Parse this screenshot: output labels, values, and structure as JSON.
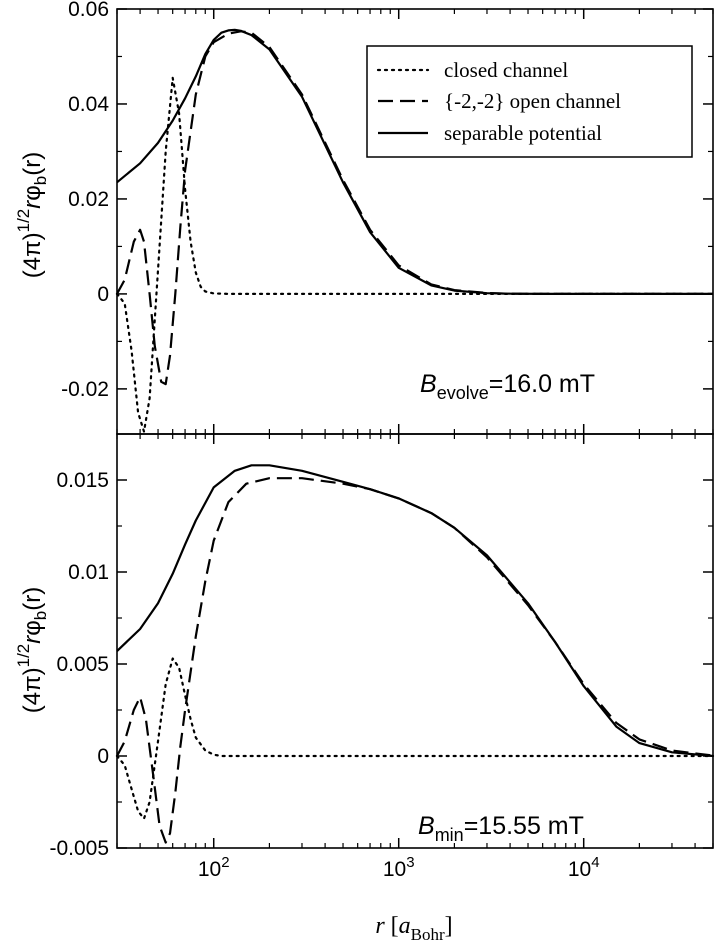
{
  "chart_data": [
    {
      "type": "line",
      "panel": "top",
      "x_scale": "log",
      "xlim": [
        30,
        50000
      ],
      "ylim": [
        -0.0295,
        0.06
      ],
      "yticks": [
        -0.02,
        0,
        0.02,
        0.04,
        0.06
      ],
      "ytick_labels": [
        "-0.02",
        "0",
        "0.02",
        "0.04",
        "0.06"
      ],
      "ylabel": {
        "prefix": "(4π)",
        "sup": "1/2",
        "r": "r",
        "phi": "φ",
        "sub": "b",
        "arg": "(r)"
      },
      "annotation": {
        "main": "B",
        "sub": "evolve",
        "rest": "=16.0 mT"
      },
      "legend": {
        "position": "top-right",
        "entries": [
          "closed channel",
          "{-2,-2} open channel",
          "separable potential"
        ]
      },
      "series": [
        {
          "name": "closed channel",
          "style": "dotted",
          "x": [
            30,
            33,
            36,
            39,
            42,
            45,
            50,
            55,
            60,
            65,
            70,
            75,
            80,
            85,
            90,
            100,
            120,
            150,
            200,
            500,
            50000
          ],
          "y": [
            0,
            -0.002,
            -0.012,
            -0.025,
            -0.029,
            -0.022,
            0.005,
            0.03,
            0.0455,
            0.038,
            0.022,
            0.011,
            0.0045,
            0.0015,
            0.0005,
            0.0001,
            0,
            0,
            0,
            0,
            0
          ]
        },
        {
          "name": "{-2,-2} open channel",
          "style": "dashed",
          "x": [
            30,
            33,
            37,
            40,
            42,
            45,
            48,
            52,
            55,
            58,
            62,
            66,
            70,
            80,
            90,
            100,
            120,
            140,
            160,
            200,
            300,
            500,
            700,
            1000,
            1500,
            2000,
            3000,
            4000,
            6000,
            10000,
            50000
          ],
          "y": [
            0,
            0.003,
            0.011,
            0.0135,
            0.011,
            0.0,
            -0.011,
            -0.0185,
            -0.019,
            -0.013,
            0.0,
            0.014,
            0.026,
            0.042,
            0.05,
            0.053,
            0.0548,
            0.0553,
            0.055,
            0.052,
            0.042,
            0.024,
            0.0135,
            0.006,
            0.002,
            0.0008,
            0.0002,
            5e-05,
            0,
            0,
            0
          ]
        },
        {
          "name": "separable potential",
          "style": "solid",
          "x": [
            30,
            40,
            50,
            60,
            70,
            80,
            90,
            100,
            110,
            120,
            130,
            140,
            160,
            200,
            300,
            500,
            700,
            1000,
            1500,
            2000,
            3000,
            4000,
            6000,
            10000,
            50000
          ],
          "y": [
            0.0235,
            0.0275,
            0.0318,
            0.0365,
            0.0412,
            0.0458,
            0.0505,
            0.0535,
            0.055,
            0.0555,
            0.0556,
            0.0554,
            0.0545,
            0.0515,
            0.0415,
            0.0235,
            0.013,
            0.0055,
            0.0018,
            0.0007,
            0.00015,
            5e-05,
            0,
            0,
            0
          ]
        }
      ]
    },
    {
      "type": "line",
      "panel": "bottom",
      "x_scale": "log",
      "xlim": [
        30,
        50000
      ],
      "ylim": [
        -0.005,
        0.0175
      ],
      "yticks": [
        -0.005,
        0,
        0.005,
        0.01,
        0.015
      ],
      "ytick_labels": [
        "-0.005",
        "0",
        "0.005",
        "0.01",
        "0.015"
      ],
      "ylabel": {
        "prefix": "(4π)",
        "sup": "1/2",
        "r": "r",
        "phi": "φ",
        "sub": "b",
        "arg": "(r)"
      },
      "annotation": {
        "main": "B",
        "sub": "min",
        "rest": "=15.55 mT"
      },
      "xticks": [
        100,
        1000,
        10000
      ],
      "xtick_labels": [
        {
          "base": "10",
          "exp": "2"
        },
        {
          "base": "10",
          "exp": "3"
        },
        {
          "base": "10",
          "exp": "4"
        }
      ],
      "xlabel": {
        "r": "r",
        "open": " [",
        "a": "a",
        "sub": "Bohr",
        "close": "]"
      },
      "series": [
        {
          "name": "closed channel",
          "style": "dotted",
          "x": [
            30,
            33,
            36,
            39,
            42,
            45,
            50,
            55,
            60,
            65,
            70,
            75,
            80,
            90,
            100,
            110,
            130,
            200,
            500,
            50000
          ],
          "y": [
            0,
            -0.0005,
            -0.0018,
            -0.003,
            -0.0034,
            -0.0025,
            0.0008,
            0.0039,
            0.0053,
            0.0048,
            0.0033,
            0.002,
            0.001,
            0.0003,
            7e-05,
            0,
            0,
            0,
            0,
            0
          ]
        },
        {
          "name": "{-2,-2} open channel",
          "style": "dashed",
          "x": [
            30,
            33,
            37,
            40,
            43,
            47,
            51,
            55,
            58,
            62,
            66,
            70,
            80,
            90,
            100,
            120,
            150,
            200,
            300,
            500,
            700,
            1000,
            1500,
            2000,
            3000,
            5000,
            7000,
            10000,
            15000,
            20000,
            30000,
            50000
          ],
          "y": [
            0,
            0.0008,
            0.0025,
            0.0032,
            0.002,
            -0.001,
            -0.0038,
            -0.0047,
            -0.0042,
            -0.002,
            0.0005,
            0.0025,
            0.0065,
            0.0095,
            0.0117,
            0.0138,
            0.0148,
            0.0151,
            0.0151,
            0.0148,
            0.0145,
            0.014,
            0.0132,
            0.0124,
            0.0108,
            0.0082,
            0.0062,
            0.0039,
            0.0018,
            0.0009,
            0.0003,
            2e-05
          ]
        },
        {
          "name": "separable potential",
          "style": "solid",
          "x": [
            30,
            40,
            50,
            60,
            70,
            80,
            100,
            130,
            160,
            200,
            300,
            500,
            700,
            1000,
            1500,
            2000,
            3000,
            5000,
            7000,
            10000,
            15000,
            20000,
            30000,
            50000
          ],
          "y": [
            0.0057,
            0.0069,
            0.0083,
            0.0099,
            0.0115,
            0.0128,
            0.0146,
            0.0155,
            0.0158,
            0.0158,
            0.0155,
            0.0149,
            0.0145,
            0.014,
            0.0132,
            0.0124,
            0.0109,
            0.0083,
            0.0062,
            0.0038,
            0.0016,
            0.0007,
            0.0002,
            0
          ]
        }
      ]
    }
  ]
}
